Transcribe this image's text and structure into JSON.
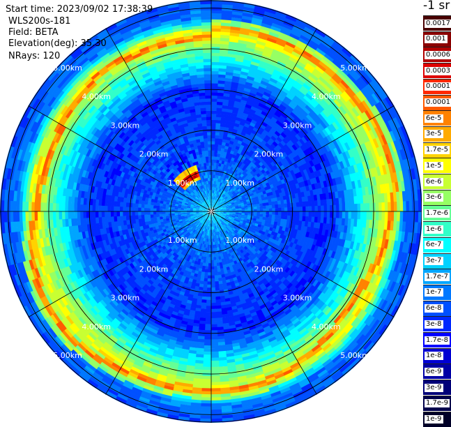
{
  "header": {
    "start_time": "Start time: 2023/09/02 17:38:39",
    "instrument": "WLS200s-181",
    "field": "Field: BETA",
    "elevation": "Elevation(deg): 35.30",
    "nrays": "NRays: 120"
  },
  "chart_data": {
    "type": "heatmap",
    "projection": "polar (plan position indicator)",
    "field": "BETA",
    "unit": "-1 sr",
    "rings_km": [
      1,
      2,
      3,
      4,
      5
    ],
    "ring_labels": [
      "1.00km",
      "2.00km",
      "3.00km",
      "4.00km",
      "5.00km"
    ],
    "max_range_km": 5.2,
    "n_rays": 120,
    "radial_lines": 12,
    "colorbar": [
      {
        "label": "0.0017",
        "color": "#4a0000"
      },
      {
        "label": "0.001",
        "color": "#8b0000"
      },
      {
        "label": "0.0006",
        "color": "#b00000"
      },
      {
        "label": "0.0003",
        "color": "#dd0000"
      },
      {
        "label": "0.00017",
        "color": "#ff2800"
      },
      {
        "label": "0.0001",
        "color": "#ff5a00"
      },
      {
        "label": "6e-5",
        "color": "#ff8200"
      },
      {
        "label": "3e-5",
        "color": "#ffaa00"
      },
      {
        "label": "1.7e-5",
        "color": "#ffd200"
      },
      {
        "label": "1e-5",
        "color": "#ffff00"
      },
      {
        "label": "6e-6",
        "color": "#c8ff32"
      },
      {
        "label": "3e-6",
        "color": "#96ff64"
      },
      {
        "label": "1.7e-6",
        "color": "#64ff96"
      },
      {
        "label": "1e-6",
        "color": "#32ffc8"
      },
      {
        "label": "6e-7",
        "color": "#00ffff"
      },
      {
        "label": "3e-7",
        "color": "#00d2ff"
      },
      {
        "label": "1.7e-7",
        "color": "#00a5ff"
      },
      {
        "label": "1e-7",
        "color": "#0078ff"
      },
      {
        "label": "6e-8",
        "color": "#0050ff"
      },
      {
        "label": "3e-8",
        "color": "#0028ff"
      },
      {
        "label": "1.7e-8",
        "color": "#0000ff"
      },
      {
        "label": "1e-8",
        "color": "#0000d2"
      },
      {
        "label": "6e-9",
        "color": "#0000a5"
      },
      {
        "label": "3e-9",
        "color": "#000078"
      },
      {
        "label": "1.7e-9",
        "color": "#00004b"
      },
      {
        "label": "1e-9",
        "color": "#000028"
      }
    ],
    "radial_profile": [
      {
        "range_km": 0.1,
        "value": "3e-7"
      },
      {
        "range_km": 0.7,
        "value": "1e-7"
      },
      {
        "range_km": 1.5,
        "value": "6e-8"
      },
      {
        "range_km": 3.0,
        "value": "3e-8"
      },
      {
        "range_km": 4.4,
        "value": "1e-5"
      },
      {
        "range_km": 4.75,
        "value": "1e-7"
      },
      {
        "range_km": 5.15,
        "value": "6e-8"
      }
    ],
    "features": [
      {
        "type": "bright band",
        "range_km": 4.4,
        "peak_value": "0.0001"
      },
      {
        "type": "hotspot",
        "range_km": 1.0,
        "azimuth_deg": 325,
        "peak_value": "0.0006"
      }
    ]
  }
}
